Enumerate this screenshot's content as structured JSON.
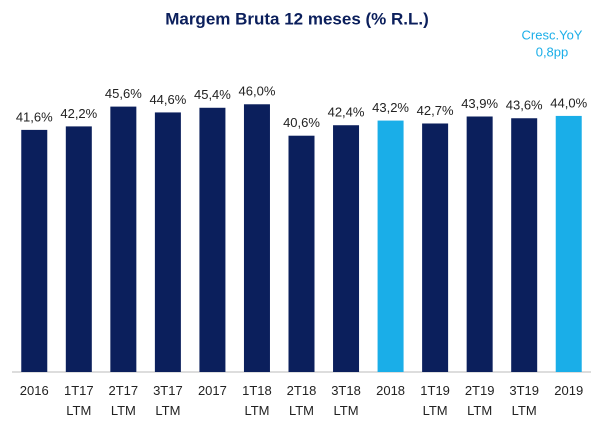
{
  "chart_data": {
    "type": "bar",
    "title": "Margem Bruta 12 meses (% R.L.)",
    "annotations": [
      "Cresc.YoY",
      "0,8pp"
    ],
    "categories": [
      "2016",
      "1T17 LTM",
      "2T17 LTM",
      "3T17 LTM",
      "2017",
      "1T18 LTM",
      "2T18 LTM",
      "3T18 LTM",
      "2018",
      "1T19 LTM",
      "2T19 LTM",
      "3T19 LTM",
      "2019"
    ],
    "values": [
      41.6,
      42.2,
      45.6,
      44.6,
      45.4,
      46.0,
      40.6,
      42.4,
      43.2,
      42.7,
      43.9,
      43.6,
      44.0
    ],
    "value_labels": [
      "41,6%",
      "42,2%",
      "45,6%",
      "44,6%",
      "45,4%",
      "46,0%",
      "40,6%",
      "42,4%",
      "43,2%",
      "42,7%",
      "43,9%",
      "43,6%",
      "44,0%"
    ],
    "colors": [
      "#0b1f5c",
      "#0b1f5c",
      "#0b1f5c",
      "#0b1f5c",
      "#0b1f5c",
      "#0b1f5c",
      "#0b1f5c",
      "#0b1f5c",
      "#1aaee8",
      "#0b1f5c",
      "#0b1f5c",
      "#0b1f5c",
      "#1aaee8"
    ],
    "ylim": [
      0,
      50
    ]
  }
}
